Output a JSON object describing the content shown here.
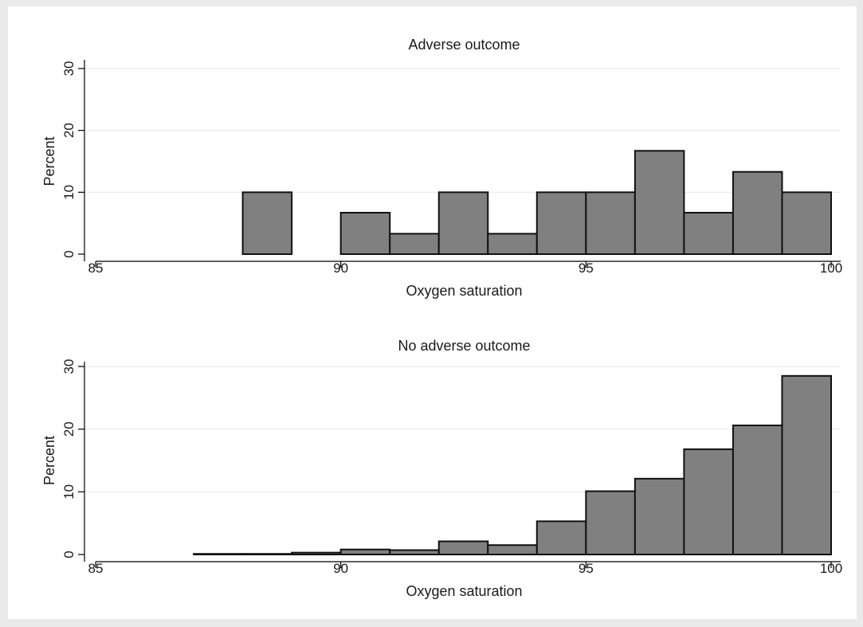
{
  "colors": {
    "outer_background": "#eaeaea",
    "plot_background": "#ffffff",
    "bar_fill": "#808080",
    "bar_outline": "#111111",
    "gridline": "#eaeaea",
    "axis": "#000000"
  },
  "chart_data": [
    {
      "type": "bar",
      "title": "Adverse outcome",
      "xlabel": "Oxygen saturation",
      "ylabel": "Percent",
      "xlim": [
        85,
        100
      ],
      "ylim": [
        0,
        30
      ],
      "xticks": [
        "85",
        "90",
        "95",
        "100"
      ],
      "yticks": [
        "0",
        "10",
        "20",
        "30"
      ],
      "grid": true,
      "bin_width": 1,
      "bins": [
        {
          "start": 88,
          "value": 10.0
        },
        {
          "start": 90,
          "value": 6.7
        },
        {
          "start": 91,
          "value": 3.3
        },
        {
          "start": 92,
          "value": 10.0
        },
        {
          "start": 93,
          "value": 3.3
        },
        {
          "start": 94,
          "value": 10.0
        },
        {
          "start": 95,
          "value": 10.0
        },
        {
          "start": 96,
          "value": 16.7
        },
        {
          "start": 97,
          "value": 6.7
        },
        {
          "start": 98,
          "value": 13.3
        },
        {
          "start": 99,
          "value": 10.0
        }
      ]
    },
    {
      "type": "bar",
      "title": "No adverse outcome",
      "xlabel": "Oxygen saturation",
      "ylabel": "Percent",
      "xlim": [
        85,
        100
      ],
      "ylim": [
        0,
        30
      ],
      "xticks": [
        "85",
        "90",
        "95",
        "100"
      ],
      "yticks": [
        "0",
        "10",
        "20",
        "30"
      ],
      "grid": true,
      "bin_width": 1,
      "bins": [
        {
          "start": 87,
          "value": 0.1
        },
        {
          "start": 88,
          "value": 0.1
        },
        {
          "start": 89,
          "value": 0.3
        },
        {
          "start": 90,
          "value": 0.8
        },
        {
          "start": 91,
          "value": 0.7
        },
        {
          "start": 92,
          "value": 2.1
        },
        {
          "start": 93,
          "value": 1.5
        },
        {
          "start": 94,
          "value": 5.3
        },
        {
          "start": 95,
          "value": 10.1
        },
        {
          "start": 96,
          "value": 12.1
        },
        {
          "start": 97,
          "value": 16.8
        },
        {
          "start": 98,
          "value": 20.6
        },
        {
          "start": 99,
          "value": 28.5
        }
      ]
    }
  ]
}
